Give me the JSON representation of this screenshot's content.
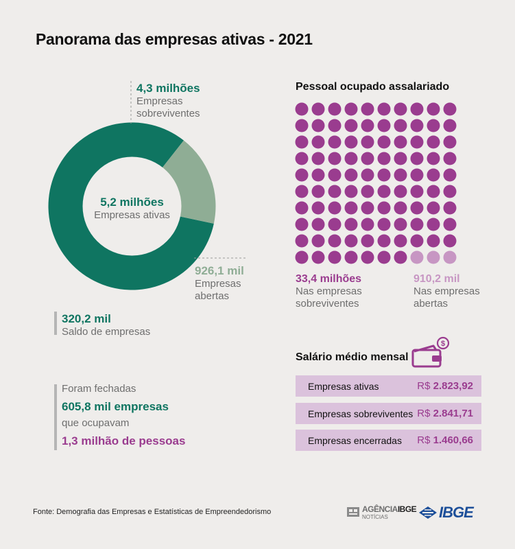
{
  "title": "Panorama das empresas ativas - 2021",
  "donut": {
    "type": "pie",
    "center_value": "5,2 milhões",
    "center_label": "Empresas ativas",
    "segments": [
      {
        "value_label": "4,3 milhões",
        "label_line1": "Empresas",
        "label_line2": "sobreviventes",
        "value": 4.3,
        "color": "#0f7561"
      },
      {
        "value_label": "926,1 mil",
        "label_line1": "Empresas",
        "label_line2": "abertas",
        "value": 0.9261,
        "color": "#8fad95"
      }
    ]
  },
  "saldo": {
    "value": "320,2 mil",
    "label": "Saldo de empresas"
  },
  "fechadas": {
    "line1": "Foram fechadas",
    "line2": "605,8 mil empresas",
    "line3": "que ocupavam",
    "line4": "1,3 milhão de pessoas"
  },
  "pessoal": {
    "title": "Pessoal ocupado assalariado",
    "grid_rows": 10,
    "grid_cols": 10,
    "dots_total": 100,
    "dots_light": 3,
    "color_dark": "#9a3c8f",
    "color_light": "#c796c3",
    "left": {
      "value": "33,4 milhões",
      "line1": "Nas empresas",
      "line2": "sobreviventes"
    },
    "right": {
      "value": "910,2 mil",
      "line1": "Nas empresas",
      "line2": "abertas"
    }
  },
  "salario": {
    "title": "Salário médio mensal",
    "currency": "R$",
    "rows": [
      {
        "label": "Empresas ativas",
        "value": "2.823,92"
      },
      {
        "label": "Empresas sobreviventes",
        "value": "2.841,71"
      },
      {
        "label": "Empresas encerradas",
        "value": "1.460,66"
      }
    ]
  },
  "footer": {
    "source": "Fonte: Demografia das Empresas e Estatísticas de Empreendedorismo",
    "agencia_line1": "AGÊNCIA",
    "agencia_brand": "IBGE",
    "agencia_line2": "NOTÍCIAS",
    "ibge_logo": "IBGE"
  },
  "chart_data": [
    {
      "type": "pie",
      "title": "",
      "categories": [
        "Empresas sobreviventes",
        "Empresas abertas"
      ],
      "values": [
        4.3,
        0.9261
      ],
      "total": 5.2
    },
    {
      "type": "bar",
      "title": "Salário médio mensal",
      "categories": [
        "Empresas ativas",
        "Empresas sobreviventes",
        "Empresas encerradas"
      ],
      "values": [
        2823.92,
        2841.71,
        1460.66
      ]
    }
  ]
}
